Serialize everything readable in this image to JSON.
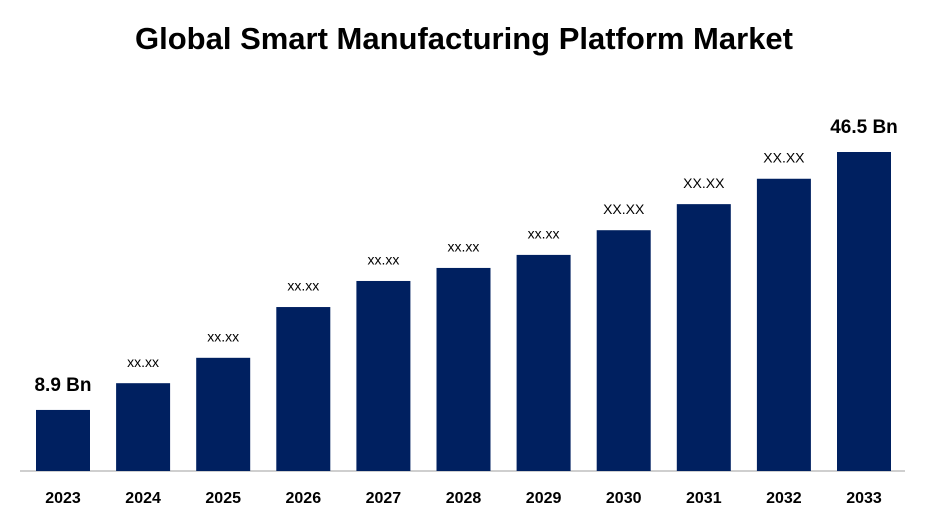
{
  "chart_data": {
    "type": "bar",
    "title": "Global Smart Manufacturing Platform Market",
    "categories": [
      "2023",
      "2024",
      "2025",
      "2026",
      "2027",
      "2028",
      "2029",
      "2030",
      "2031",
      "2032",
      "2033"
    ],
    "values": [
      8.9,
      12.8,
      16.5,
      23.9,
      27.7,
      29.6,
      31.5,
      35.1,
      38.9,
      42.6,
      46.5
    ],
    "value_labels": [
      "8.9 Bn",
      "xx.xx",
      "xx.xx",
      "xx.xx",
      "xx.xx",
      "xx.xx",
      "xx.xx",
      "XX.XX",
      "XX.XX",
      "XX.XX",
      "46.5 Bn"
    ],
    "color": "#002060"
  }
}
